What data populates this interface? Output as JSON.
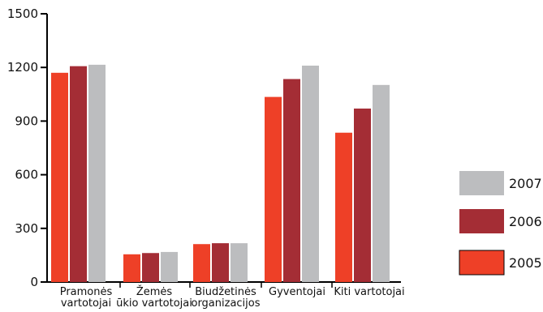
{
  "chart_data": {
    "type": "bar",
    "title": "",
    "xlabel": "",
    "ylabel": "",
    "ylim": [
      0,
      1500
    ],
    "yticks": [
      0,
      300,
      600,
      900,
      1200,
      1500
    ],
    "grid": false,
    "legend_position": "right",
    "categories": [
      [
        "Pramonės",
        "vartotojai"
      ],
      [
        "Žemės",
        "ūkio vartotojai"
      ],
      [
        "Biudžetinės",
        "organizacijos"
      ],
      [
        "Gyventojai"
      ],
      [
        "Kiti vartotojai"
      ]
    ],
    "series": [
      {
        "name": "2005",
        "color": "#ee4027",
        "values": [
          1170,
          155,
          212,
          1035,
          835
        ]
      },
      {
        "name": "2006",
        "color": "#a42d35",
        "values": [
          1207,
          162,
          217,
          1135,
          970
        ]
      },
      {
        "name": "2007",
        "color": "#bcbdbf",
        "values": [
          1215,
          168,
          217,
          1210,
          1102
        ]
      }
    ],
    "legend_order": [
      "2007",
      "2006",
      "2005"
    ]
  }
}
